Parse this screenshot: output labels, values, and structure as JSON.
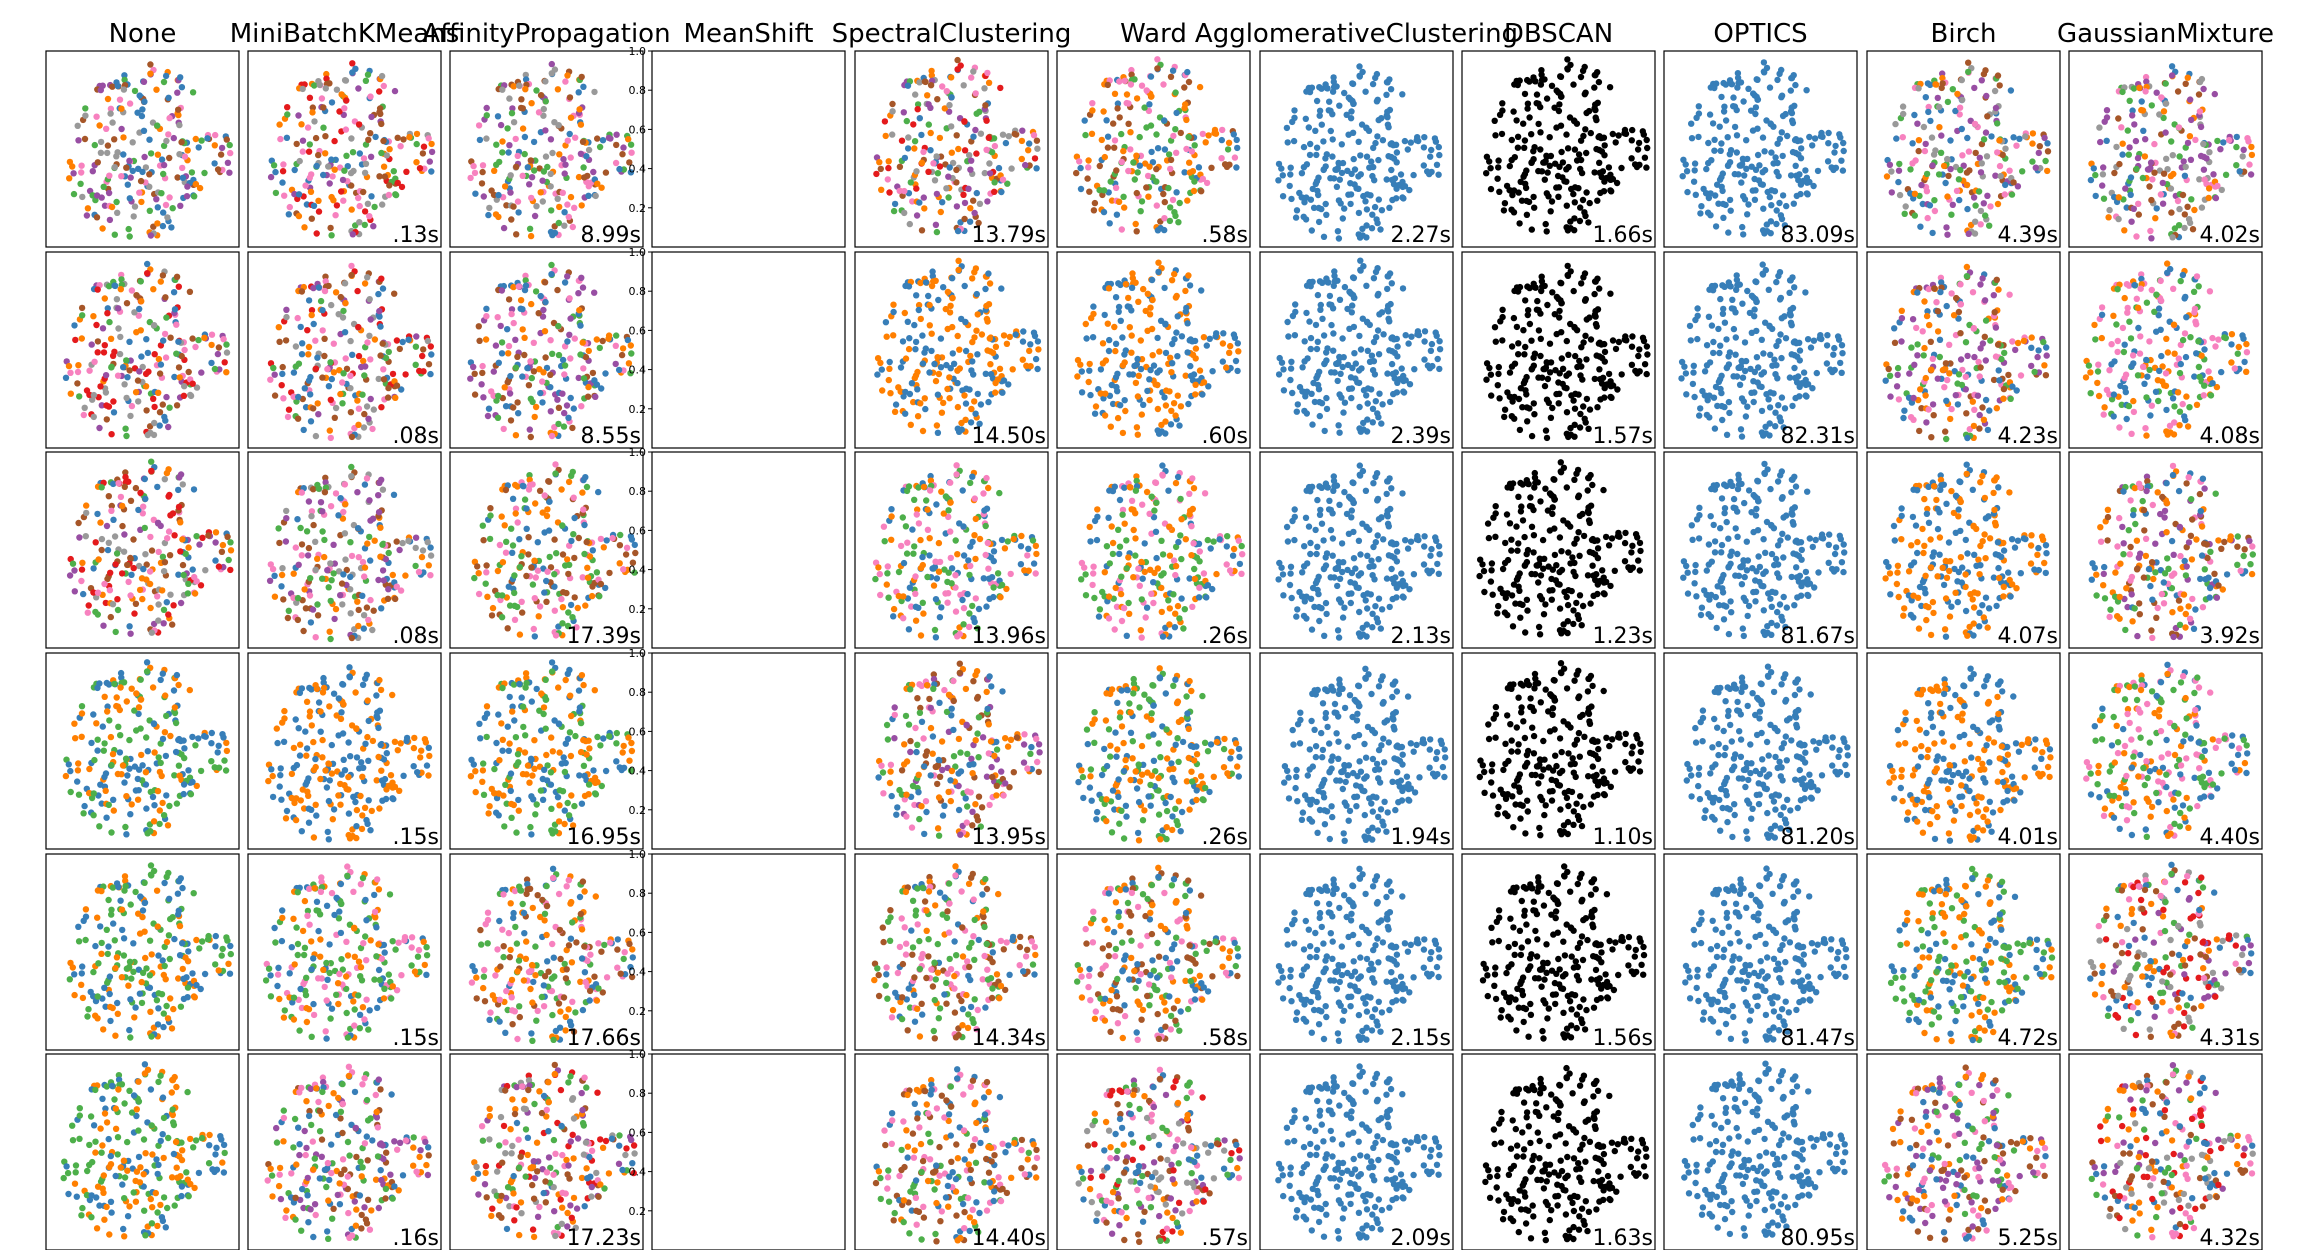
{
  "chart_data": {
    "type": "scatter",
    "grid": false,
    "columns": [
      {
        "title": "None",
        "times": [
          "",
          "",
          "",
          "",
          "",
          ""
        ],
        "palette": "multi"
      },
      {
        "title": "MiniBatchKMeans",
        "times": [
          ".13s",
          ".08s",
          ".08s",
          ".15s",
          ".15s",
          ".16s"
        ],
        "palette": "multi"
      },
      {
        "title": "AffinityPropagation",
        "times": [
          "8.99s",
          "8.55s",
          "17.39s",
          "16.95s",
          "17.66s",
          "17.23s"
        ],
        "palette": "multi"
      },
      {
        "title": "MeanShift",
        "times": [
          "",
          "",
          "",
          "",
          "",
          ""
        ],
        "palette": "empty",
        "empty_axis_ticks": [
          "0.2",
          "0.4",
          "0.6",
          "0.8",
          "1.0"
        ]
      },
      {
        "title": "SpectralClustering",
        "times": [
          "13.79s",
          "14.50s",
          "13.96s",
          "13.95s",
          "14.34s",
          "14.40s"
        ],
        "palette": "multi"
      },
      {
        "title": "Ward",
        "times": [
          ".58s",
          ".60s",
          ".26s",
          ".26s",
          ".58s",
          ".57s"
        ],
        "palette": "multi"
      },
      {
        "title": "AgglomerativeClustering",
        "times": [
          "2.27s",
          "2.39s",
          "2.13s",
          "1.94s",
          "2.15s",
          "2.09s"
        ],
        "palette": "single-blue"
      },
      {
        "title": "DBSCAN",
        "times": [
          "1.66s",
          "1.57s",
          "1.23s",
          "1.10s",
          "1.56s",
          "1.63s"
        ],
        "palette": "single-black"
      },
      {
        "title": "OPTICS",
        "times": [
          "83.09s",
          "82.31s",
          "81.67s",
          "81.20s",
          "81.47s",
          "80.95s"
        ],
        "palette": "single-blue"
      },
      {
        "title": "Birch",
        "times": [
          "4.39s",
          "4.23s",
          "4.07s",
          "4.01s",
          "4.72s",
          "5.25s"
        ],
        "palette": "multi"
      },
      {
        "title": "GaussianMixture",
        "times": [
          "4.02s",
          "4.08s",
          "3.92s",
          "4.40s",
          "4.31s",
          "4.32s"
        ],
        "palette": "multi"
      }
    ],
    "rows": 6,
    "colors": [
      "#377eb8",
      "#ff7f00",
      "#4daf4a",
      "#f781bf",
      "#a65628",
      "#984ea3",
      "#999999",
      "#e41a1c",
      "#dede00"
    ],
    "single_blue": "#377eb8",
    "single_black": "#000000"
  }
}
